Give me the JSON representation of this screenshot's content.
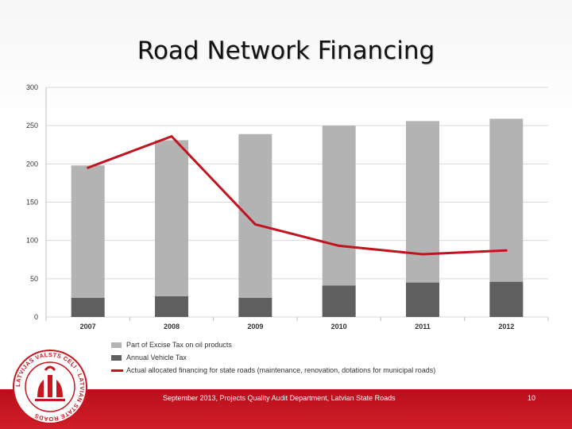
{
  "slide": {
    "title": "Road Network Financing",
    "footer": "September 2013,  Projects Quality Audit Department, Latvian State Roads",
    "page_number": "10",
    "logo_text": "LATVIJAS VALSTS CEĻI · LATVIAN STATE ROADS"
  },
  "colors": {
    "excise": "#b3b3b3",
    "vehicle_tax": "#5f5f5f",
    "actual": "#c0141f",
    "footer": "#c8151f"
  },
  "chart_data": {
    "type": "bar",
    "categories": [
      "2007",
      "2008",
      "2009",
      "2010",
      "2011",
      "2012"
    ],
    "series": [
      {
        "name": "Part of Excise Tax on oil products",
        "type": "bar",
        "stacked": true,
        "values": [
          173,
          204,
          214,
          209,
          211,
          213
        ]
      },
      {
        "name": "Annual Vehicle Tax",
        "type": "bar",
        "stacked": true,
        "values": [
          25,
          27,
          25,
          41,
          45,
          46
        ]
      },
      {
        "name": "Actual allocated financing for state roads (maintenance, renovation, dotations for municipal roads)",
        "type": "line",
        "values": [
          195,
          236,
          121,
          93,
          82,
          87
        ]
      }
    ],
    "yticks": [
      "0",
      "50",
      "100",
      "150",
      "200",
      "250",
      "300"
    ],
    "ylim": [
      0,
      300
    ],
    "grid": true,
    "legend_position": "bottom"
  }
}
